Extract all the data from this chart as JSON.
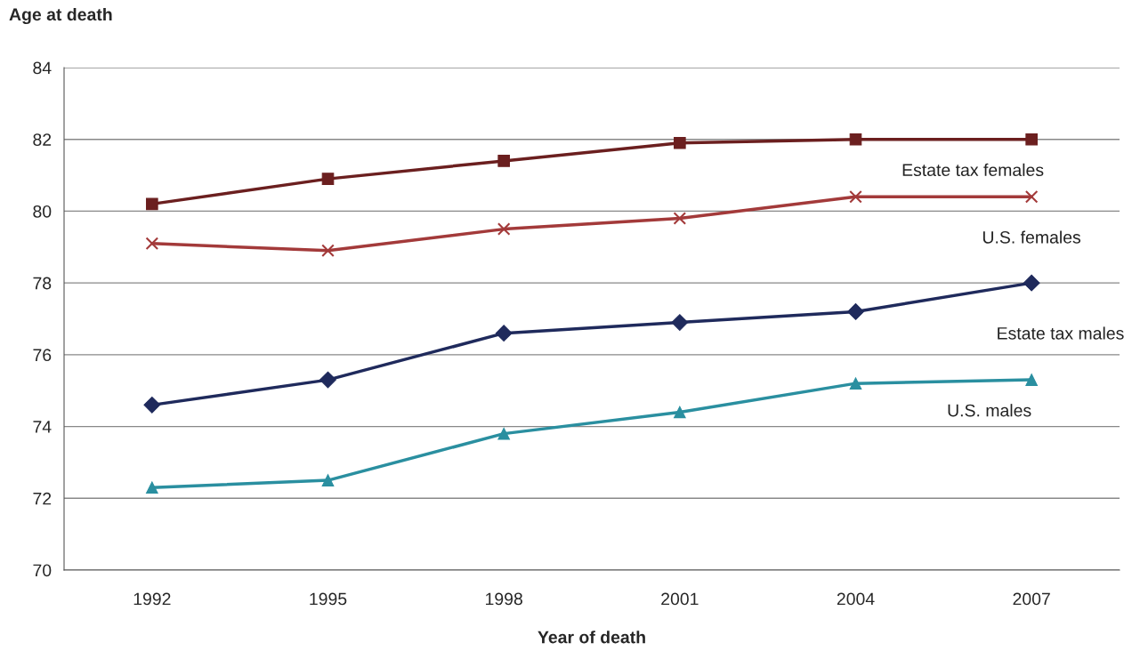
{
  "chart_data": {
    "type": "line",
    "xlabel": "Year of death",
    "ylabel": "Age at death",
    "categories": [
      "1992",
      "1995",
      "1998",
      "2001",
      "2004",
      "2007"
    ],
    "series": [
      {
        "name": "Estate tax females",
        "color": "#6b1f1f",
        "marker": "square",
        "values": [
          80.2,
          80.9,
          81.4,
          81.9,
          82.0,
          82.0
        ]
      },
      {
        "name": "U.S. females",
        "color": "#a33a3a",
        "marker": "cross",
        "values": [
          79.1,
          78.9,
          79.5,
          79.8,
          80.4,
          80.4
        ]
      },
      {
        "name": "Estate tax males",
        "color": "#1f2a5c",
        "marker": "diamond",
        "values": [
          74.6,
          75.3,
          76.6,
          76.9,
          77.2,
          78.0
        ]
      },
      {
        "name": "U.S. males",
        "color": "#2a8fa0",
        "marker": "triangle",
        "values": [
          72.3,
          72.5,
          73.8,
          74.4,
          75.2,
          75.3
        ]
      }
    ],
    "ylim": [
      70,
      84
    ],
    "yticks": [
      70,
      72,
      74,
      76,
      78,
      80,
      82,
      84
    ],
    "grid": "y",
    "legend": false,
    "line_style": "solid"
  }
}
